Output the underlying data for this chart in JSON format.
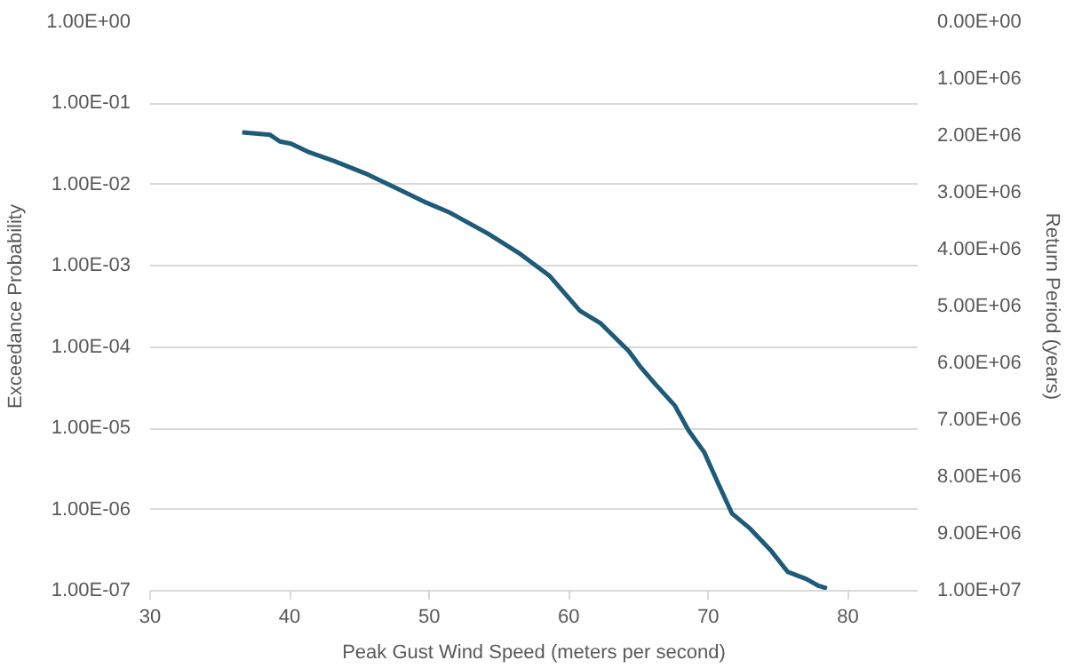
{
  "chart_data": {
    "type": "line",
    "xlabel": "Peak Gust Wind Speed (meters per second)",
    "ylabel": "Exceedance Probability",
    "y2label": "Return Period (years)",
    "log": "y",
    "grid": "y",
    "marker": "none",
    "line_style": "solid",
    "xlim": [
      30,
      85
    ],
    "xticks": [
      30,
      40,
      50,
      60,
      70,
      80
    ],
    "ylim": [
      1e-07,
      1
    ],
    "yticks": [
      {
        "value": 1,
        "label": "1.00E+00"
      },
      {
        "value": 0.1,
        "label": "1.00E-01"
      },
      {
        "value": 0.01,
        "label": "1.00E-02"
      },
      {
        "value": 0.001,
        "label": "1.00E-03"
      },
      {
        "value": 0.0001,
        "label": "1.00E-04"
      },
      {
        "value": 1e-05,
        "label": "1.00E-05"
      },
      {
        "value": 1e-06,
        "label": "1.00E-06"
      },
      {
        "value": 1e-07,
        "label": "1.00E-07"
      }
    ],
    "y2lim": [
      10000000,
      0
    ],
    "y2ticks": [
      {
        "value": 0,
        "label": "0.00E+00"
      },
      {
        "value": 1000000,
        "label": "1.00E+06"
      },
      {
        "value": 2000000,
        "label": "2.00E+06"
      },
      {
        "value": 3000000,
        "label": "3.00E+06"
      },
      {
        "value": 4000000,
        "label": "4.00E+06"
      },
      {
        "value": 5000000,
        "label": "5.00E+06"
      },
      {
        "value": 6000000,
        "label": "6.00E+06"
      },
      {
        "value": 7000000,
        "label": "7.00E+06"
      },
      {
        "value": 8000000,
        "label": "8.00E+06"
      },
      {
        "value": 9000000,
        "label": "9.00E+06"
      },
      {
        "value": 10000000,
        "label": "1.00E+07"
      }
    ],
    "series": [
      {
        "color": "#1d5b79",
        "x": [
          36.6,
          38.6,
          39.3,
          40.1,
          41.4,
          43.2,
          45.4,
          47.6,
          49.8,
          51.5,
          54.2,
          56.4,
          58.6,
          60.8,
          62.3,
          64.3,
          65.1,
          66.2,
          67.6,
          68.6,
          69.7,
          70.6,
          71.7,
          73.0,
          74.5,
          75.7,
          77.0,
          77.9,
          78.5
        ],
        "values": [
          0.044,
          0.041,
          0.034,
          0.032,
          0.025,
          0.0195,
          0.0138,
          0.0091,
          0.006,
          0.0045,
          0.0025,
          0.00145,
          0.00076,
          0.00028,
          0.000195,
          8.9e-05,
          5.8e-05,
          3.5e-05,
          1.9e-05,
          9.3e-06,
          5.1e-06,
          2.3e-06,
          8.9e-07,
          5.8e-07,
          3.1e-07,
          1.7e-07,
          1.4e-07,
          1.15e-07,
          1.07e-07
        ]
      }
    ]
  }
}
